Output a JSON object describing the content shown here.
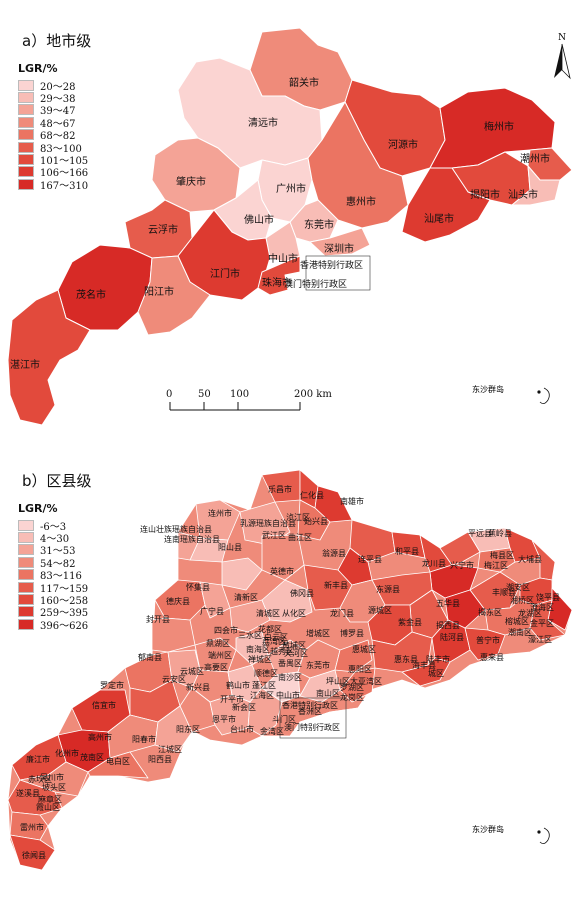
{
  "panel_a": {
    "title": "a）地市级",
    "legend_title": "LGR/%",
    "legend": [
      {
        "label": "20～28",
        "color": "#fbd4d2"
      },
      {
        "label": "29～38",
        "color": "#f8bdb6"
      },
      {
        "label": "39～47",
        "color": "#f4a396"
      },
      {
        "label": "48～67",
        "color": "#ef8b7a"
      },
      {
        "label": "68～82",
        "color": "#eb7462"
      },
      {
        "label": "83～100",
        "color": "#e65c4c"
      },
      {
        "label": "101～105",
        "color": "#e24a3c"
      },
      {
        "label": "106～166",
        "color": "#dd3a30"
      },
      {
        "label": "167～310",
        "color": "#d72a26"
      }
    ],
    "regions": [
      {
        "name": "韶关市",
        "color": "#ef8b7a"
      },
      {
        "name": "清远市",
        "color": "#fbd4d2"
      },
      {
        "name": "河源市",
        "color": "#e24a3c"
      },
      {
        "name": "梅州市",
        "color": "#d72a26"
      },
      {
        "name": "潮州市",
        "color": "#e65c4c"
      },
      {
        "name": "肇庆市",
        "color": "#f4a396"
      },
      {
        "name": "广州市",
        "color": "#fbd4d2"
      },
      {
        "name": "惠州市",
        "color": "#eb7462"
      },
      {
        "name": "揭阳市",
        "color": "#e24a3c"
      },
      {
        "name": "汕头市",
        "color": "#f8bdb6"
      },
      {
        "name": "云浮市",
        "color": "#e65c4c"
      },
      {
        "name": "佛山市",
        "color": "#fbd4d2"
      },
      {
        "name": "东莞市",
        "color": "#f8bdb6"
      },
      {
        "name": "汕尾市",
        "color": "#dd3a30"
      },
      {
        "name": "深圳市",
        "color": "#f4a396"
      },
      {
        "name": "中山市",
        "color": "#f8bdb6"
      },
      {
        "name": "香港特别行政区",
        "color": "#ffffff"
      },
      {
        "name": "江门市",
        "color": "#dd3a30"
      },
      {
        "name": "澳门特别行政区",
        "color": "#ffffff"
      },
      {
        "name": "珠海市",
        "color": "#e24a3c"
      },
      {
        "name": "茂名市",
        "color": "#d72a26"
      },
      {
        "name": "阳江市",
        "color": "#ef8b7a"
      },
      {
        "name": "湛江市",
        "color": "#e24a3c"
      }
    ],
    "north": "N",
    "scale_ticks": [
      "0",
      "50",
      "100",
      "200 km"
    ],
    "islands": "东沙群岛"
  },
  "panel_b": {
    "title": "b）区县级",
    "legend_title": "LGR/%",
    "legend": [
      {
        "label": "-6～3",
        "color": "#fbd4d2"
      },
      {
        "label": "4～30",
        "color": "#f8bdb6"
      },
      {
        "label": "31～53",
        "color": "#f4a396"
      },
      {
        "label": "54～82",
        "color": "#ef8b7a"
      },
      {
        "label": "83～116",
        "color": "#eb7462"
      },
      {
        "label": "117～159",
        "color": "#e65c4c"
      },
      {
        "label": "160～258",
        "color": "#e24a3c"
      },
      {
        "label": "259～395",
        "color": "#dd3a30"
      },
      {
        "label": "396～626",
        "color": "#d72a26"
      }
    ],
    "counties": [
      "乐昌市",
      "仁化县",
      "南雄市",
      "连山壮族瑶族自治县",
      "乳源瑶族自治县",
      "浈江区",
      "始兴县",
      "连南瑶族自治县",
      "武江区",
      "曲江区",
      "平远县",
      "连州市",
      "阳山县",
      "翁源县",
      "连平县",
      "和平县",
      "蕉岭县",
      "英德市",
      "龙川县",
      "梅县区",
      "大埔县",
      "兴宁市",
      "梅江区",
      "新丰县",
      "东源县",
      "怀集县",
      "佛冈县",
      "五华县",
      "丰顺县",
      "广宁县",
      "清新区",
      "从化区",
      "龙门县",
      "源城区",
      "湘桥区",
      "潮安区",
      "饶平县",
      "封开县",
      "德庆县",
      "四会市",
      "紫金县",
      "揭西县",
      "揭东区",
      "榕城区",
      "潮南区",
      "清城区",
      "花都区",
      "增城区",
      "博罗县",
      "陆河县",
      "普宁市",
      "惠来县",
      "鼎湖区",
      "白云区",
      "黄埔区",
      "惠城区",
      "金平区",
      "濠江区",
      "龙湖区",
      "澄海区",
      "郁南县",
      "端州区",
      "三水区",
      "南海区",
      "荔湾区",
      "越秀区",
      "天河区",
      "惠阳区",
      "惠东县",
      "海丰县",
      "陆丰市",
      "城区",
      "高要区",
      "禅城区",
      "顺德区",
      "番禺区",
      "南沙区",
      "东莞市",
      "大亚湾区",
      "罗定市",
      "云城区",
      "云安区",
      "新兴县",
      "鹤山市",
      "蓬江区",
      "江海区",
      "中山市",
      "坪山区",
      "龙岗区",
      "南山区",
      "罗湖区",
      "信宜市",
      "新会区",
      "恩平市",
      "开平市",
      "台山市",
      "斗门区",
      "香洲区",
      "金湾区",
      "香港特别行政区",
      "澳门特别行政区",
      "高州市",
      "阳春市",
      "阳东区",
      "江城区",
      "阳西县",
      "化州市",
      "电白区",
      "茂南区",
      "廉江市",
      "吴川市",
      "遂溪县",
      "麻章区",
      "坡头区",
      "赤坎区",
      "霞山区",
      "雷州市",
      "徐闻县"
    ],
    "islands": "东沙群岛"
  }
}
